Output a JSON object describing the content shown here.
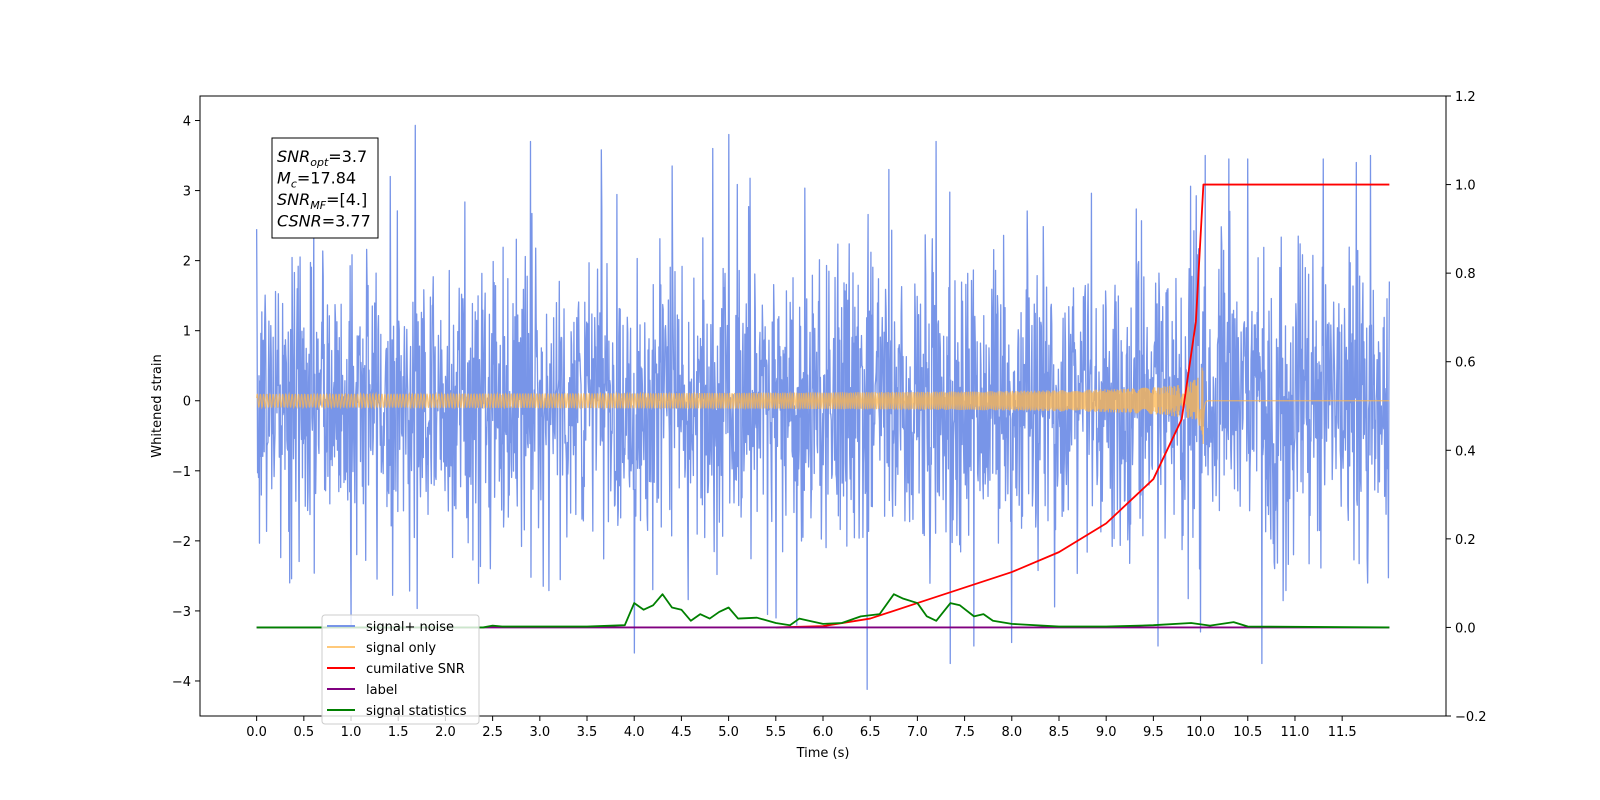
{
  "chart_data": {
    "type": "line",
    "xlabel": "Time (s)",
    "ylabel": "Whitened strain",
    "xlim": [
      -0.6,
      12.6
    ],
    "ylim": [
      -4.5,
      4.35
    ],
    "y2lim": [
      -0.2,
      1.2
    ],
    "x_ticks": [
      "0.0",
      "0.5",
      "1.0",
      "1.5",
      "2.0",
      "2.5",
      "3.0",
      "3.5",
      "4.0",
      "4.5",
      "5.0",
      "5.5",
      "6.0",
      "6.5",
      "7.0",
      "7.5",
      "8.0",
      "8.5",
      "9.0",
      "9.5",
      "10.0",
      "10.5",
      "11.0",
      "11.5"
    ],
    "y_ticks": [
      "4",
      "3",
      "2",
      "1",
      "0",
      "−1",
      "−2",
      "−3",
      "−4"
    ],
    "y2_ticks": [
      "1.2",
      "1.0",
      "0.8",
      "0.6",
      "0.4",
      "0.2",
      "0.0",
      "−0.2"
    ],
    "grid": false,
    "annotation": [
      {
        "base": "SNR",
        "sub": "opt",
        "rest": "=3.7"
      },
      {
        "base": "M",
        "sub": "c",
        "rest": "=17.84"
      },
      {
        "base": "SNR",
        "sub": "MF",
        "rest": "=[4.]"
      },
      {
        "base": "CSNR",
        "sub": "",
        "rest": "=3.77"
      }
    ],
    "legend_position": "lower-left",
    "series": [
      {
        "name": "signal+ noise",
        "color": "#7895e8",
        "axis": "left",
        "kind": "noise",
        "x_range": [
          0,
          12
        ],
        "std": 1.05,
        "peak_samples": [
          [
            0.0,
            2.45
          ],
          [
            0.35,
            -2.6
          ],
          [
            1.0,
            -3.2
          ],
          [
            1.68,
            3.93
          ],
          [
            2.9,
            3.7
          ],
          [
            3.65,
            3.58
          ],
          [
            4.0,
            -3.6
          ],
          [
            4.4,
            3.35
          ],
          [
            4.83,
            3.6
          ],
          [
            5.0,
            3.8
          ],
          [
            5.5,
            -3.1
          ],
          [
            6.47,
            -4.12
          ],
          [
            6.7,
            3.3
          ],
          [
            7.2,
            3.7
          ],
          [
            7.35,
            -3.75
          ],
          [
            7.6,
            -3.5
          ],
          [
            8.0,
            -3.45
          ],
          [
            9.55,
            -3.5
          ],
          [
            10.0,
            -3.3
          ],
          [
            10.05,
            3.5
          ],
          [
            10.3,
            3.45
          ],
          [
            10.5,
            3.45
          ],
          [
            10.65,
            -3.75
          ],
          [
            11.3,
            3.45
          ],
          [
            11.65,
            3.4
          ],
          [
            11.8,
            3.5
          ]
        ]
      },
      {
        "name": "signal only",
        "color": "#ffb74d",
        "axis": "left",
        "kind": "chirp",
        "x_range": [
          0,
          12
        ],
        "merger_time": 10.03,
        "peak_amplitude": 0.72
      },
      {
        "name": "cumilative SNR",
        "color": "#ff0000",
        "axis": "right",
        "x": [
          5.5,
          6.0,
          6.5,
          7.0,
          7.5,
          8.0,
          8.5,
          9.0,
          9.5,
          9.8,
          9.95,
          10.03,
          12.0
        ],
        "values": [
          0.0,
          0.003,
          0.02,
          0.055,
          0.09,
          0.125,
          0.17,
          0.235,
          0.335,
          0.47,
          0.69,
          1.0,
          1.0
        ]
      },
      {
        "name": "label",
        "color": "#800080",
        "axis": "right",
        "x": [
          0.0,
          12.0
        ],
        "values": [
          0.0,
          0.0
        ]
      },
      {
        "name": "signal statistics",
        "color": "#008000",
        "axis": "right",
        "x": [
          0.0,
          2.4,
          2.5,
          2.6,
          3.5,
          3.9,
          4.0,
          4.1,
          4.2,
          4.3,
          4.4,
          4.5,
          4.6,
          4.7,
          4.8,
          4.9,
          5.0,
          5.1,
          5.3,
          5.5,
          5.65,
          5.75,
          5.85,
          6.0,
          6.2,
          6.4,
          6.6,
          6.75,
          6.85,
          7.0,
          7.1,
          7.2,
          7.35,
          7.45,
          7.6,
          7.7,
          7.8,
          8.0,
          8.5,
          9.0,
          9.5,
          9.9,
          10.1,
          10.35,
          10.5,
          12.0
        ],
        "values": [
          0.0,
          0.0,
          0.004,
          0.002,
          0.002,
          0.005,
          0.055,
          0.04,
          0.05,
          0.075,
          0.045,
          0.04,
          0.015,
          0.03,
          0.02,
          0.035,
          0.045,
          0.02,
          0.022,
          0.01,
          0.005,
          0.02,
          0.015,
          0.008,
          0.01,
          0.025,
          0.03,
          0.075,
          0.065,
          0.055,
          0.025,
          0.015,
          0.055,
          0.05,
          0.025,
          0.03,
          0.015,
          0.008,
          0.002,
          0.002,
          0.005,
          0.01,
          0.004,
          0.012,
          0.002,
          0.0
        ]
      }
    ]
  }
}
